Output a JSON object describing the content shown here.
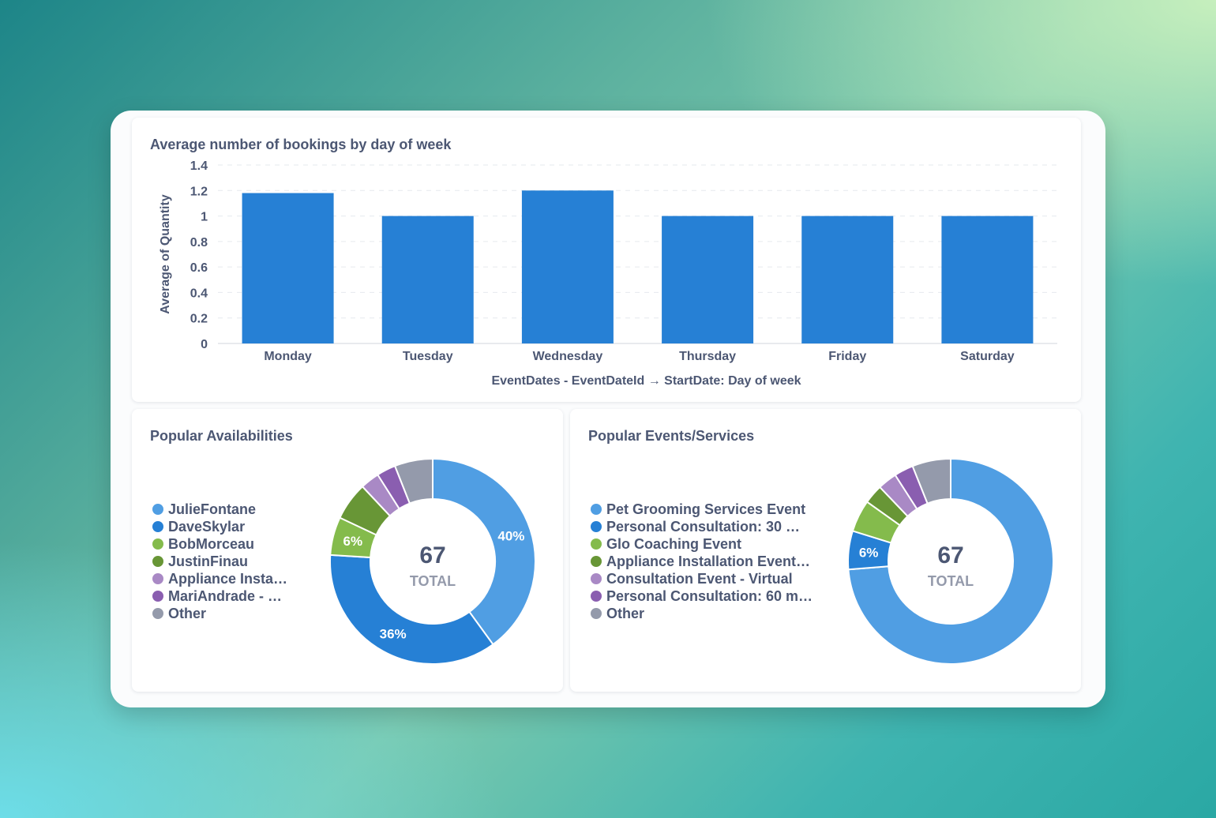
{
  "colors": {
    "bar": "#2680d5",
    "grid": "#e6e9ee",
    "axis_text": "#4c5773",
    "center_total_label": "#949aab"
  },
  "bar_card": {
    "title": "Average number of bookings by day of week"
  },
  "avail_card": {
    "title": "Popular Availabilities",
    "legend": [
      {
        "label": "JulieFontane",
        "color": "#509ee3"
      },
      {
        "label": "DaveSkylar",
        "color": "#2680d5"
      },
      {
        "label": "BobMorceau",
        "color": "#84bb4c"
      },
      {
        "label": "JustinFinau",
        "color": "#689636"
      },
      {
        "label": "Appliance Insta…",
        "color": "#a989c5"
      },
      {
        "label": "MariAndrade - …",
        "color": "#8a5eb0"
      },
      {
        "label": "Other",
        "color": "#949aab"
      }
    ],
    "center_value": "67",
    "center_label": "TOTAL"
  },
  "events_card": {
    "title": "Popular Events/Services",
    "legend": [
      {
        "label": "Pet Grooming Services Event",
        "color": "#509ee3"
      },
      {
        "label": "Personal Consultation: 30 …",
        "color": "#2680d5"
      },
      {
        "label": "Glo Coaching Event",
        "color": "#84bb4c"
      },
      {
        "label": "Appliance Installation Event…",
        "color": "#689636"
      },
      {
        "label": "Consultation Event - Virtual",
        "color": "#a989c5"
      },
      {
        "label": "Personal Consultation: 60 m…",
        "color": "#8a5eb0"
      },
      {
        "label": "Other",
        "color": "#949aab"
      }
    ],
    "center_value": "67",
    "center_label": "TOTAL"
  },
  "chart_data": [
    {
      "type": "bar",
      "title": "Average number of bookings by day of week",
      "categories": [
        "Monday",
        "Tuesday",
        "Wednesday",
        "Thursday",
        "Friday",
        "Saturday"
      ],
      "values": [
        1.18,
        1.0,
        1.2,
        1.0,
        1.0,
        1.0
      ],
      "xlabel": "EventDates - EventDateId → StartDate: Day of week",
      "ylabel": "Average of Quantity",
      "ylim": [
        0,
        1.4
      ],
      "yticks": [
        "0",
        "0.2",
        "0.4",
        "0.6",
        "0.8",
        "1",
        "1.2",
        "1.4"
      ],
      "grid": true,
      "legend": "none"
    },
    {
      "type": "pie",
      "title": "Popular Availabilities",
      "total": 67,
      "slices": [
        {
          "label": "JulieFontane",
          "value": 40,
          "value_label": "40%"
        },
        {
          "label": "DaveSkylar",
          "value": 36,
          "value_label": "36%"
        },
        {
          "label": "BobMorceau",
          "value": 6,
          "value_label": "6%"
        },
        {
          "label": "JustinFinau",
          "value": 6,
          "value_label": ""
        },
        {
          "label": "Appliance Insta…",
          "value": 3,
          "value_label": ""
        },
        {
          "label": "MariAndrade - …",
          "value": 3,
          "value_label": ""
        },
        {
          "label": "Other",
          "value": 6,
          "value_label": ""
        }
      ],
      "legend": "left"
    },
    {
      "type": "pie",
      "title": "Popular Events/Services",
      "total": 67,
      "slices": [
        {
          "label": "Pet Grooming Services Event",
          "value": 73,
          "value_label": ""
        },
        {
          "label": "Personal Consultation: 30 …",
          "value": 6,
          "value_label": "6%"
        },
        {
          "label": "Glo Coaching Event",
          "value": 5,
          "value_label": ""
        },
        {
          "label": "Appliance Installation Event…",
          "value": 3,
          "value_label": ""
        },
        {
          "label": "Consultation Event - Virtual",
          "value": 3,
          "value_label": ""
        },
        {
          "label": "Personal Consultation: 60 m…",
          "value": 3,
          "value_label": ""
        },
        {
          "label": "Other",
          "value": 6,
          "value_label": ""
        }
      ],
      "legend": "left"
    }
  ]
}
